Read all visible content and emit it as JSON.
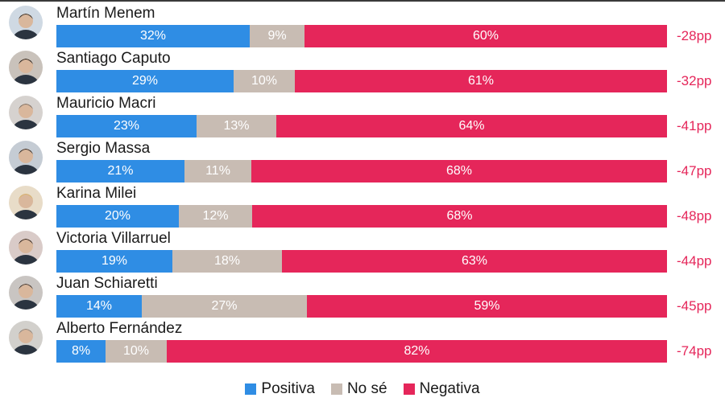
{
  "chart_data": {
    "type": "bar",
    "orientation": "horizontal",
    "stacked": true,
    "categories": [
      "Martín Menem",
      "Santiago Caputo",
      "Mauricio Macri",
      "Sergio Massa",
      "Karina Milei",
      "Victoria Villarruel",
      "Juan Schiaretti",
      "Alberto Fernández"
    ],
    "series": [
      {
        "name": "Positiva",
        "color": "#2f8de4",
        "values": [
          32,
          29,
          23,
          21,
          20,
          19,
          14,
          8
        ]
      },
      {
        "name": "No sé",
        "color": "#c8bcb3",
        "values": [
          9,
          10,
          13,
          11,
          12,
          18,
          27,
          10
        ]
      },
      {
        "name": "Negativa",
        "color": "#e5265a",
        "values": [
          60,
          61,
          64,
          68,
          68,
          63,
          59,
          82
        ]
      }
    ],
    "differences": [
      "-28pp",
      "-32pp",
      "-41pp",
      "-47pp",
      "-48pp",
      "-44pp",
      "-45pp",
      "-74pp"
    ],
    "value_suffix": "%",
    "legend": [
      "Positiva",
      "No sé",
      "Negativa"
    ],
    "legend_position": "bottom-center"
  }
}
